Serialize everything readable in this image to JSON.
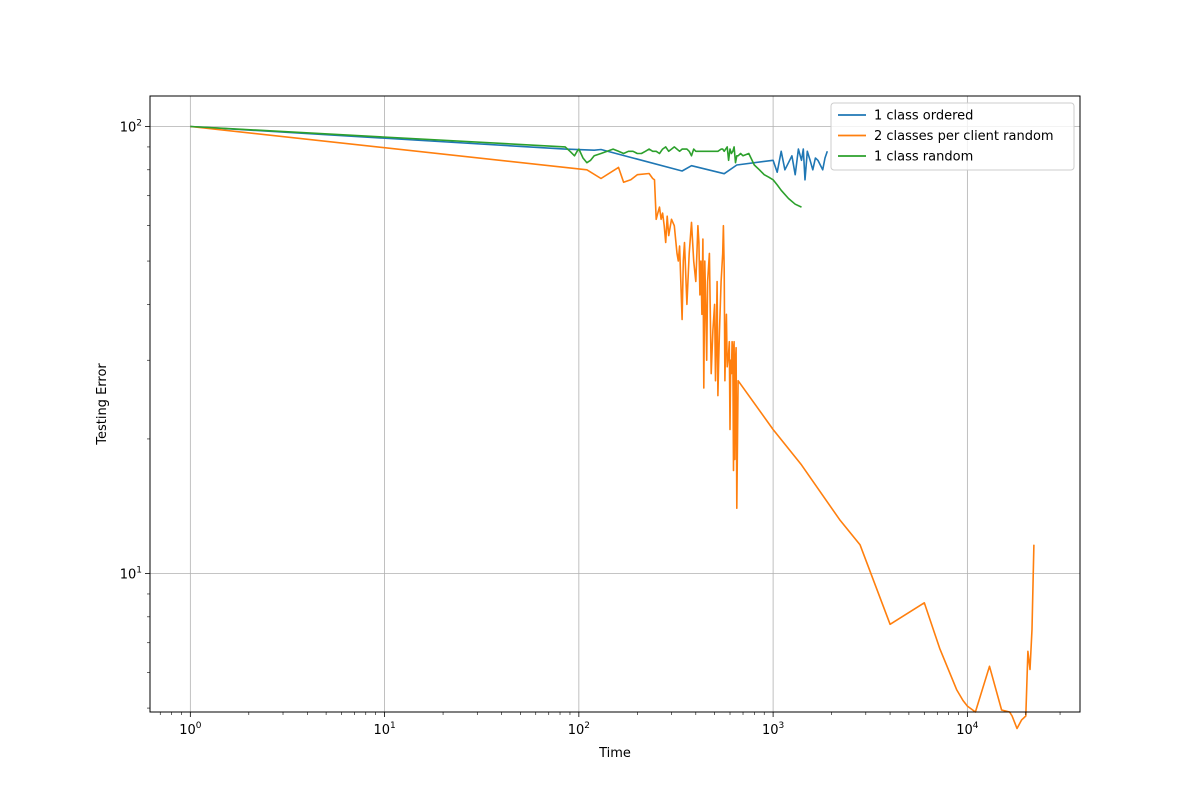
{
  "chart_data": {
    "type": "line",
    "xlabel": "Time",
    "ylabel": "Testing Error",
    "xscale": "log",
    "yscale": "log",
    "xlim": [
      0.62,
      38000
    ],
    "ylim": [
      4.9,
      117
    ],
    "grid": true,
    "legend_position": "top-right",
    "x_ticks": [
      {
        "value": 1,
        "base": "10",
        "exp": "0"
      },
      {
        "value": 10,
        "base": "10",
        "exp": "1"
      },
      {
        "value": 100,
        "base": "10",
        "exp": "2"
      },
      {
        "value": 1000,
        "base": "10",
        "exp": "3"
      },
      {
        "value": 10000,
        "base": "10",
        "exp": "4"
      }
    ],
    "y_ticks": [
      {
        "value": 10,
        "base": "10",
        "exp": "1"
      },
      {
        "value": 100,
        "base": "10",
        "exp": "2"
      }
    ],
    "series": [
      {
        "name": "1 class ordered",
        "color": "#1f77b4",
        "x": [
          1,
          85,
          120,
          130,
          340,
          380,
          560,
          650,
          1000,
          1050,
          1100,
          1150,
          1200,
          1250,
          1300,
          1350,
          1400,
          1430,
          1460,
          1500,
          1550,
          1600,
          1650,
          1700,
          1750,
          1800,
          1850,
          1900
        ],
        "y": [
          100,
          89,
          88.5,
          88.8,
          79.5,
          81.7,
          78.4,
          82,
          84,
          79,
          88,
          80,
          83,
          86,
          78,
          89,
          84,
          89,
          76,
          88,
          84,
          80,
          85,
          84,
          82,
          80,
          85,
          88
        ]
      },
      {
        "name": "2 classes per client random",
        "color": "#ff7f0e",
        "x": [
          1,
          110,
          130,
          160,
          170,
          185,
          200,
          230,
          240,
          245,
          250,
          255,
          260,
          265,
          270,
          275,
          280,
          285,
          290,
          300,
          310,
          320,
          325,
          330,
          340,
          345,
          350,
          360,
          370,
          380,
          390,
          400,
          405,
          410,
          415,
          420,
          425,
          430,
          435,
          440,
          445,
          450,
          455,
          460,
          470,
          480,
          490,
          500,
          505,
          510,
          515,
          520,
          525,
          530,
          540,
          550,
          555,
          560,
          565,
          570,
          575,
          580,
          585,
          590,
          595,
          600,
          605,
          610,
          615,
          620,
          625,
          630,
          635,
          640,
          645,
          650,
          660,
          1000,
          1400,
          2200,
          2800,
          4000,
          6000,
          7200,
          8800,
          9500,
          10000,
          11000,
          13000,
          15000,
          16500,
          17000,
          18000,
          19000,
          20000,
          20500,
          21000,
          21500,
          22000
        ],
        "y": [
          100,
          80,
          76.5,
          81,
          75,
          76,
          78,
          78.5,
          76.5,
          76,
          62,
          64,
          66,
          62,
          64,
          60,
          55,
          63,
          57,
          62,
          60,
          52,
          50,
          54,
          37,
          50,
          55,
          40,
          52,
          61,
          50,
          45,
          52,
          60,
          55,
          42,
          50,
          38,
          56,
          26,
          50,
          40,
          30,
          45,
          52,
          28,
          35,
          40,
          27,
          33,
          45,
          25,
          30,
          35,
          45,
          52,
          60,
          48,
          27,
          33,
          38,
          29,
          30,
          31,
          33,
          21,
          30,
          28,
          33,
          32,
          17,
          33,
          18,
          30,
          32,
          14,
          27,
          21,
          17.5,
          13.2,
          11.6,
          7.7,
          8.6,
          6.8,
          5.5,
          5.2,
          5.05,
          4.9,
          6.2,
          4.95,
          4.9,
          4.8,
          4.5,
          4.7,
          4.8,
          6.7,
          6.1,
          7.5,
          11.6
        ]
      },
      {
        "name": "1 class random",
        "color": "#2ca02c",
        "x": [
          1,
          85,
          90,
          95,
          98,
          100,
          105,
          110,
          115,
          120,
          130,
          140,
          150,
          160,
          170,
          180,
          190,
          200,
          210,
          220,
          230,
          240,
          250,
          260,
          270,
          280,
          290,
          300,
          310,
          320,
          330,
          340,
          350,
          360,
          370,
          380,
          390,
          400,
          420,
          440,
          460,
          480,
          500,
          520,
          540,
          550,
          560,
          570,
          580,
          590,
          600,
          610,
          620,
          630,
          640,
          650,
          660,
          680,
          700,
          750,
          800,
          850,
          900,
          950,
          1000,
          1050,
          1100,
          1200,
          1300,
          1400
        ],
        "y": [
          100,
          90,
          88,
          86,
          88,
          89,
          85,
          83,
          84,
          86,
          87,
          88,
          89,
          88,
          87,
          88,
          88,
          87,
          87,
          88,
          89,
          88,
          88,
          87,
          89,
          90,
          88,
          89,
          90,
          89,
          88,
          89,
          89,
          89,
          88,
          86,
          89,
          88,
          88,
          88,
          88,
          88,
          88,
          88,
          89,
          89,
          88,
          89,
          90,
          84,
          89,
          87,
          88,
          90,
          83,
          86,
          86,
          87,
          86,
          87,
          82,
          80,
          78,
          77,
          76,
          74,
          72,
          69,
          67,
          66
        ]
      }
    ]
  }
}
